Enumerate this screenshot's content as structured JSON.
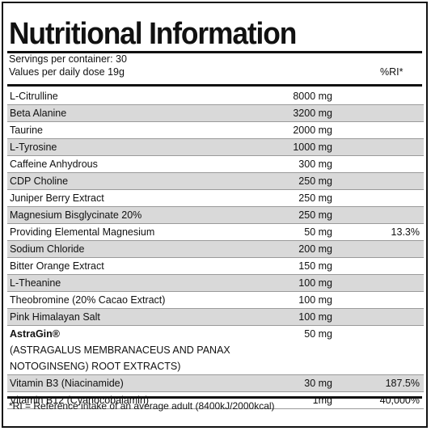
{
  "title": "Nutritional Information",
  "servings": "Servings per container: 30",
  "values_per": "Values per daily dose 19g",
  "ri_header": "%RI*",
  "rows": [
    {
      "name": "L-Citrulline",
      "amount": "8000 mg",
      "ri": ""
    },
    {
      "name": "Beta Alanine",
      "amount": "3200 mg",
      "ri": ""
    },
    {
      "name": "Taurine",
      "amount": "2000 mg",
      "ri": ""
    },
    {
      "name": "L-Tyrosine",
      "amount": "1000 mg",
      "ri": ""
    },
    {
      "name": "Caffeine Anhydrous",
      "amount": "300 mg",
      "ri": ""
    },
    {
      "name": "CDP Choline",
      "amount": "250 mg",
      "ri": ""
    },
    {
      "name": "Juniper Berry Extract",
      "amount": "250 mg",
      "ri": ""
    },
    {
      "name": "Magnesium Bisglycinate 20%",
      "amount": "250 mg",
      "ri": ""
    },
    {
      "name": "Providing Elemental Magnesium",
      "amount": "50 mg",
      "ri": "13.3%"
    },
    {
      "name": "Sodium Chloride",
      "amount": "200 mg",
      "ri": ""
    },
    {
      "name": "Bitter Orange Extract",
      "amount": "150 mg",
      "ri": ""
    },
    {
      "name": "L-Theanine",
      "amount": "100 mg",
      "ri": ""
    },
    {
      "name": "Theobromine (20% Cacao Extract)",
      "amount": "100 mg",
      "ri": ""
    },
    {
      "name": "Pink Himalayan Salt",
      "amount": "100 mg",
      "ri": ""
    },
    {
      "name": "AstraGin®",
      "sub1": "(ASTRAGALUS MEMBRANACEUS AND PANAX",
      "sub2": "NOTOGINSENG) ROOT EXTRACTS)",
      "amount": "50 mg",
      "ri": ""
    },
    {
      "name": "Vitamin B3 (Niacinamide)",
      "amount": "30 mg",
      "ri": "187.5%"
    },
    {
      "name": "Vitamin B12 (Cyanocobalamin)",
      "amount": "1mg",
      "ri": "40,000%"
    }
  ],
  "footnote": "*RI = Reference intake of an average adult (8400kJ/2000kcal)"
}
